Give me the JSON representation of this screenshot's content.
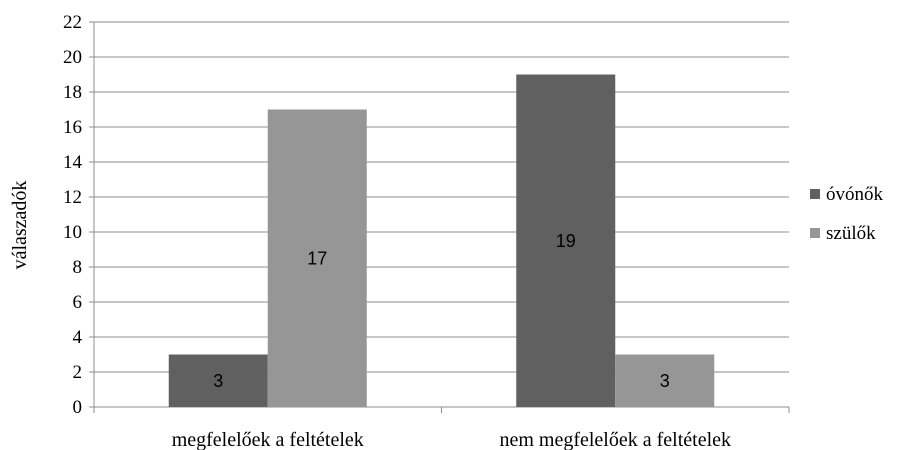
{
  "chart_data": {
    "type": "bar",
    "categories": [
      "megfelelőek a feltételek",
      "nem megfelelőek a feltételek"
    ],
    "series": [
      {
        "name": "óvónők",
        "values": [
          3,
          19
        ],
        "color": "#606060"
      },
      {
        "name": "szülők",
        "values": [
          17,
          3
        ],
        "color": "#969696"
      }
    ],
    "ylabel": "válaszadók",
    "xlabel": "",
    "ylim": [
      0,
      22
    ],
    "yticks": [
      0,
      2,
      4,
      6,
      8,
      10,
      12,
      14,
      16,
      18,
      20,
      22
    ],
    "grid": true,
    "legend_position": "right",
    "data_labels": true
  }
}
